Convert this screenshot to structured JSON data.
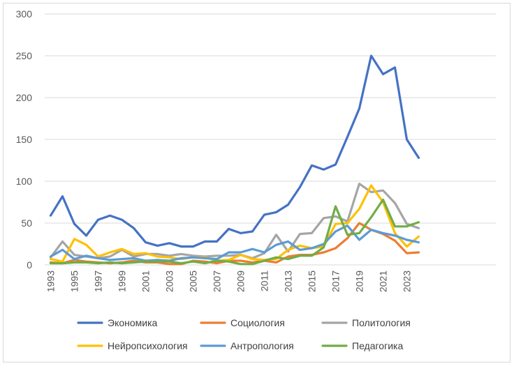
{
  "chart_data": {
    "type": "line",
    "title": "",
    "xlabel": "",
    "ylabel": "",
    "ylim": [
      0,
      300
    ],
    "yticks": [
      0,
      50,
      100,
      150,
      200,
      250,
      300
    ],
    "x": [
      1993,
      1994,
      1995,
      1996,
      1997,
      1998,
      1999,
      2000,
      2001,
      2002,
      2003,
      2004,
      2005,
      2006,
      2007,
      2008,
      2009,
      2010,
      2011,
      2012,
      2013,
      2014,
      2015,
      2016,
      2017,
      2018,
      2019,
      2020,
      2021,
      2022,
      2023,
      2024
    ],
    "xtick_labels": [
      "1993",
      "1995",
      "1997",
      "1999",
      "2001",
      "2003",
      "2005",
      "2007",
      "2009",
      "2011",
      "2013",
      "2015",
      "2017",
      "2019",
      "2021",
      "2023"
    ],
    "grid": "horizontal",
    "legend_position": "bottom",
    "series": [
      {
        "name": "Экономика",
        "color": "#4472c4",
        "values": [
          59,
          82,
          49,
          35,
          54,
          59,
          54,
          44,
          27,
          23,
          26,
          22,
          22,
          28,
          28,
          43,
          38,
          40,
          60,
          63,
          72,
          93,
          119,
          114,
          120,
          153,
          187,
          250,
          228,
          236,
          150,
          128
        ]
      },
      {
        "name": "Социология",
        "color": "#ed7d31",
        "values": [
          3,
          2,
          6,
          4,
          3,
          2,
          3,
          5,
          3,
          3,
          1,
          1,
          5,
          4,
          2,
          5,
          5,
          3,
          5,
          3,
          10,
          12,
          12,
          15,
          20,
          32,
          50,
          42,
          37,
          29,
          14,
          15
        ]
      },
      {
        "name": "Политология",
        "color": "#a5a5a5",
        "values": [
          9,
          28,
          12,
          10,
          8,
          10,
          18,
          10,
          13,
          13,
          11,
          13,
          11,
          10,
          11,
          11,
          12,
          8,
          14,
          36,
          16,
          37,
          38,
          56,
          58,
          52,
          97,
          87,
          89,
          74,
          49,
          44
        ]
      },
      {
        "name": "Нейропсихология",
        "color": "#ffc000",
        "values": [
          7,
          4,
          31,
          24,
          10,
          15,
          19,
          13,
          14,
          10,
          9,
          7,
          9,
          9,
          5,
          6,
          12,
          7,
          6,
          7,
          18,
          23,
          20,
          22,
          49,
          50,
          67,
          95,
          75,
          38,
          22,
          34
        ]
      },
      {
        "name": "Антропология",
        "color": "#5b9bd5",
        "values": [
          10,
          18,
          7,
          11,
          8,
          6,
          7,
          8,
          5,
          6,
          5,
          8,
          9,
          8,
          7,
          15,
          15,
          19,
          15,
          24,
          28,
          18,
          20,
          25,
          40,
          47,
          30,
          42,
          38,
          35,
          30,
          27
        ]
      },
      {
        "name": "Педагогика",
        "color": "#70ad47",
        "values": [
          2,
          2,
          3,
          3,
          2,
          3,
          2,
          3,
          4,
          4,
          4,
          2,
          4,
          2,
          5,
          4,
          1,
          1,
          5,
          9,
          7,
          11,
          11,
          21,
          70,
          36,
          38,
          57,
          78,
          46,
          46,
          51
        ]
      }
    ]
  }
}
